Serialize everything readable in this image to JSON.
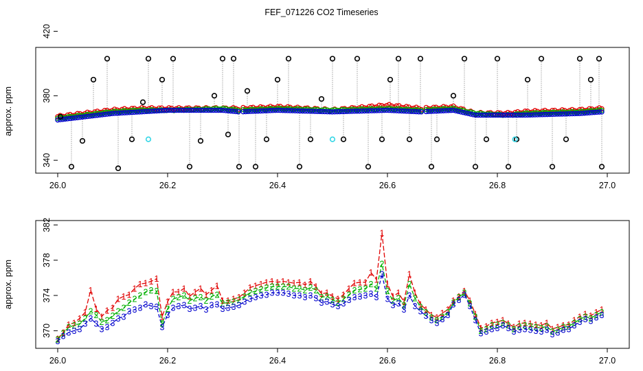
{
  "figure": {
    "title": "FEF_071226  CO2 Timeseries"
  },
  "colors": {
    "red": "#e00000",
    "green": "#00b000",
    "blue": "#0000cc",
    "black": "#000000",
    "cyan": "#33d6e6",
    "gray": "#888888"
  },
  "chart_data": [
    {
      "type": "scatter",
      "title": "",
      "xlabel": "",
      "ylabel": "approx. ppm",
      "xlim": [
        26.0,
        27.0
      ],
      "ylim": [
        332,
        410
      ],
      "xticks": [
        "26.0",
        "26.2",
        "26.4",
        "26.6",
        "26.8",
        "27.0"
      ],
      "yticks": [
        "340",
        "380",
        "420"
      ],
      "series": [
        {
          "name": "red",
          "trace": [
            [
              26.0,
              367
            ],
            [
              26.05,
              369
            ],
            [
              26.1,
              371
            ],
            [
              26.15,
              372
            ],
            [
              26.2,
              372
            ],
            [
              26.3,
              372
            ],
            [
              26.33,
              372
            ],
            [
              26.4,
              373
            ],
            [
              26.5,
              371
            ],
            [
              26.6,
              374
            ],
            [
              26.66,
              372
            ],
            [
              26.72,
              373
            ],
            [
              26.76,
              369
            ],
            [
              26.82,
              369
            ],
            [
              26.85,
              370
            ],
            [
              26.95,
              371
            ],
            [
              26.99,
              372
            ]
          ]
        },
        {
          "name": "green",
          "trace": [
            [
              26.0,
              366
            ],
            [
              26.05,
              368
            ],
            [
              26.1,
              370
            ],
            [
              26.15,
              371
            ],
            [
              26.2,
              371
            ],
            [
              26.3,
              372
            ],
            [
              26.33,
              371
            ],
            [
              26.4,
              372
            ],
            [
              26.5,
              371
            ],
            [
              26.6,
              372
            ],
            [
              26.66,
              371
            ],
            [
              26.72,
              372
            ],
            [
              26.76,
              369
            ],
            [
              26.82,
              368
            ],
            [
              26.85,
              369
            ],
            [
              26.95,
              370
            ],
            [
              26.99,
              371
            ]
          ]
        },
        {
          "name": "blue",
          "trace": [
            [
              26.0,
              365
            ],
            [
              26.05,
              367
            ],
            [
              26.1,
              369
            ],
            [
              26.15,
              370
            ],
            [
              26.2,
              371
            ],
            [
              26.3,
              371
            ],
            [
              26.33,
              370
            ],
            [
              26.4,
              371
            ],
            [
              26.5,
              370
            ],
            [
              26.6,
              371
            ],
            [
              26.66,
              370
            ],
            [
              26.72,
              371
            ],
            [
              26.76,
              368
            ],
            [
              26.82,
              368
            ],
            [
              26.85,
              368
            ],
            [
              26.95,
              369
            ],
            [
              26.99,
              370
            ]
          ]
        },
        {
          "name": "black spikes",
          "x": [
            26.005,
            26.025,
            26.045,
            26.065,
            26.09,
            26.11,
            26.135,
            26.155,
            26.165,
            26.19,
            26.21,
            26.24,
            26.26,
            26.285,
            26.3,
            26.31,
            26.32,
            26.33,
            26.345,
            26.36,
            26.38,
            26.4,
            26.42,
            26.44,
            26.46,
            26.48,
            26.5,
            26.52,
            26.545,
            26.565,
            26.59,
            26.605,
            26.62,
            26.64,
            26.66,
            26.68,
            26.69,
            26.72,
            26.74,
            26.76,
            26.78,
            26.8,
            26.82,
            26.835,
            26.855,
            26.88,
            26.9,
            26.925,
            26.95,
            26.97,
            26.985,
            26.99
          ],
          "y": [
            367,
            336,
            352,
            390,
            403,
            335,
            353,
            376,
            403,
            390,
            403,
            336,
            352,
            380,
            403,
            356,
            403,
            336,
            383,
            336,
            353,
            390,
            403,
            336,
            353,
            378,
            403,
            353,
            403,
            336,
            353,
            390,
            403,
            353,
            403,
            336,
            353,
            380,
            403,
            336,
            353,
            403,
            336,
            353,
            390,
            403,
            336,
            353,
            403,
            390,
            403,
            336
          ]
        },
        {
          "name": "cyan",
          "x": [
            26.165,
            26.5,
            26.832
          ],
          "y": [
            353,
            353,
            353
          ]
        }
      ]
    },
    {
      "type": "line",
      "title": "",
      "xlabel": "",
      "ylabel": "approx. ppm",
      "xlim": [
        26.0,
        27.0
      ],
      "ylim": [
        368,
        382.5
      ],
      "xticks": [
        "26.0",
        "26.2",
        "26.4",
        "26.6",
        "26.8",
        "27.0"
      ],
      "yticks": [
        "370",
        "374",
        "378",
        "382"
      ],
      "series": [
        {
          "name": "1",
          "marker": "1",
          "x": [
            26.0,
            26.01,
            26.02,
            26.03,
            26.04,
            26.05,
            26.06,
            26.07,
            26.08,
            26.09,
            26.1,
            26.11,
            26.12,
            26.13,
            26.14,
            26.15,
            26.16,
            26.17,
            26.18,
            26.19,
            26.2,
            26.21,
            26.22,
            26.23,
            26.24,
            26.25,
            26.26,
            26.27,
            26.28,
            26.29,
            26.3,
            26.31,
            26.32,
            26.33,
            26.34,
            26.35,
            26.36,
            26.37,
            26.38,
            26.39,
            26.4,
            26.41,
            26.42,
            26.43,
            26.44,
            26.45,
            26.46,
            26.47,
            26.48,
            26.49,
            26.5,
            26.51,
            26.52,
            26.53,
            26.54,
            26.55,
            26.56,
            26.57,
            26.58,
            26.59,
            26.6,
            26.61,
            26.62,
            26.63,
            26.64,
            26.65,
            26.66,
            26.67,
            26.68,
            26.69,
            26.7,
            26.71,
            26.72,
            26.73,
            26.74,
            26.75,
            26.76,
            26.77,
            26.78,
            26.79,
            26.8,
            26.81,
            26.82,
            26.83,
            26.84,
            26.85,
            26.86,
            26.87,
            26.88,
            26.89,
            26.9,
            26.91,
            26.92,
            26.93,
            26.94,
            26.95,
            26.96,
            26.97,
            26.98,
            26.99
          ],
          "y": [
            369.1,
            369.8,
            370.7,
            370.9,
            371.4,
            372.1,
            374.6,
            372.5,
            371.6,
            372.3,
            372.6,
            373.6,
            373.9,
            374.1,
            374.8,
            375.3,
            375.4,
            375.6,
            375.9,
            371.6,
            373.3,
            374.4,
            374.4,
            374.8,
            373.9,
            374.4,
            374.8,
            374.1,
            374.6,
            375.1,
            373.4,
            373.4,
            373.6,
            373.8,
            374.3,
            374.9,
            375.1,
            375.3,
            375.5,
            375.6,
            375.5,
            375.6,
            375.5,
            375.4,
            375.5,
            375.2,
            375.6,
            375.0,
            374.2,
            374.3,
            373.9,
            373.6,
            374.1,
            374.8,
            375.4,
            375.5,
            375.5,
            376.6,
            375.8,
            381.1,
            375.3,
            373.9,
            374.3,
            373.3,
            376.4,
            374.3,
            373.0,
            372.4,
            371.8,
            371.5,
            372.0,
            372.4,
            373.4,
            373.9,
            374.5,
            373.4,
            371.9,
            370.3,
            370.5,
            370.9,
            371.0,
            371.2,
            370.8,
            370.4,
            370.8,
            370.9,
            370.8,
            370.7,
            370.6,
            370.9,
            370.2,
            370.4,
            370.6,
            370.7,
            371.2,
            371.6,
            371.9,
            371.7,
            372.1,
            372.4
          ]
        },
        {
          "name": "2",
          "marker": "2",
          "x": [
            26.0,
            26.01,
            26.02,
            26.03,
            26.04,
            26.05,
            26.06,
            26.07,
            26.08,
            26.09,
            26.1,
            26.11,
            26.12,
            26.13,
            26.14,
            26.15,
            26.16,
            26.17,
            26.18,
            26.19,
            26.2,
            26.21,
            26.22,
            26.23,
            26.24,
            26.25,
            26.26,
            26.27,
            26.28,
            26.29,
            26.3,
            26.31,
            26.32,
            26.33,
            26.34,
            26.35,
            26.36,
            26.37,
            26.38,
            26.39,
            26.4,
            26.41,
            26.42,
            26.43,
            26.44,
            26.45,
            26.46,
            26.47,
            26.48,
            26.49,
            26.5,
            26.51,
            26.52,
            26.53,
            26.54,
            26.55,
            26.56,
            26.57,
            26.58,
            26.59,
            26.6,
            26.61,
            26.62,
            26.63,
            26.64,
            26.65,
            26.66,
            26.67,
            26.68,
            26.69,
            26.7,
            26.71,
            26.72,
            26.73,
            26.74,
            26.75,
            26.76,
            26.77,
            26.78,
            26.79,
            26.8,
            26.81,
            26.82,
            26.83,
            26.84,
            26.85,
            26.86,
            26.87,
            26.88,
            26.89,
            26.9,
            26.91,
            26.92,
            26.93,
            26.94,
            26.95,
            26.96,
            26.97,
            26.98,
            26.99
          ],
          "y": [
            369.0,
            369.7,
            370.4,
            370.6,
            370.8,
            371.4,
            372.2,
            371.8,
            371.0,
            371.2,
            371.7,
            372.2,
            372.6,
            373.2,
            373.6,
            374.0,
            374.4,
            374.6,
            374.5,
            370.8,
            372.5,
            373.6,
            373.8,
            374.0,
            373.4,
            373.7,
            373.8,
            373.4,
            373.9,
            374.1,
            373.1,
            373.2,
            373.3,
            373.5,
            373.9,
            374.3,
            374.5,
            374.7,
            374.9,
            375.0,
            375.0,
            375.0,
            375.0,
            374.8,
            374.8,
            374.6,
            374.9,
            374.6,
            373.8,
            373.9,
            373.5,
            373.2,
            373.6,
            374.1,
            374.6,
            374.7,
            374.8,
            375.3,
            374.8,
            377.6,
            374.5,
            373.4,
            373.7,
            372.9,
            375.3,
            373.7,
            372.7,
            372.1,
            371.5,
            371.2,
            371.6,
            372.1,
            373.2,
            373.8,
            374.3,
            373.1,
            371.6,
            370.0,
            370.2,
            370.6,
            370.7,
            370.9,
            370.6,
            370.2,
            370.5,
            370.6,
            370.5,
            370.4,
            370.3,
            370.5,
            369.9,
            370.1,
            370.4,
            370.5,
            370.9,
            371.3,
            371.6,
            371.4,
            371.8,
            372.1
          ]
        },
        {
          "name": "3",
          "marker": "3",
          "x": [
            26.0,
            26.01,
            26.02,
            26.03,
            26.04,
            26.05,
            26.06,
            26.07,
            26.08,
            26.09,
            26.1,
            26.11,
            26.12,
            26.13,
            26.14,
            26.15,
            26.16,
            26.17,
            26.18,
            26.19,
            26.2,
            26.21,
            26.22,
            26.23,
            26.24,
            26.25,
            26.26,
            26.27,
            26.28,
            26.29,
            26.3,
            26.31,
            26.32,
            26.33,
            26.34,
            26.35,
            26.36,
            26.37,
            26.38,
            26.39,
            26.4,
            26.41,
            26.42,
            26.43,
            26.44,
            26.45,
            26.46,
            26.47,
            26.48,
            26.49,
            26.5,
            26.51,
            26.52,
            26.53,
            26.54,
            26.55,
            26.56,
            26.57,
            26.58,
            26.59,
            26.6,
            26.61,
            26.62,
            26.63,
            26.64,
            26.65,
            26.66,
            26.67,
            26.68,
            26.69,
            26.7,
            26.71,
            26.72,
            26.73,
            26.74,
            26.75,
            26.76,
            26.77,
            26.78,
            26.79,
            26.8,
            26.81,
            26.82,
            26.83,
            26.84,
            26.85,
            26.86,
            26.87,
            26.88,
            26.89,
            26.9,
            26.91,
            26.92,
            26.93,
            26.94,
            26.95,
            26.96,
            26.97,
            26.98,
            26.99
          ],
          "y": [
            368.8,
            369.4,
            369.8,
            370.0,
            370.2,
            370.8,
            371.4,
            370.8,
            370.2,
            370.4,
            370.9,
            371.4,
            371.6,
            372.2,
            372.4,
            372.6,
            373.0,
            372.8,
            372.7,
            370.4,
            371.8,
            372.6,
            372.8,
            372.9,
            372.5,
            372.6,
            372.8,
            372.4,
            372.9,
            373.0,
            372.5,
            372.6,
            372.7,
            372.9,
            373.3,
            373.6,
            373.8,
            374.0,
            374.1,
            374.3,
            374.3,
            374.3,
            374.2,
            374.0,
            374.0,
            373.8,
            374.0,
            373.7,
            373.2,
            373.3,
            373.0,
            372.8,
            373.1,
            373.5,
            373.8,
            373.9,
            374.0,
            374.2,
            373.8,
            376.4,
            373.6,
            372.9,
            373.1,
            372.4,
            374.0,
            372.8,
            372.2,
            371.7,
            371.2,
            370.9,
            371.3,
            371.8,
            373.0,
            373.5,
            374.1,
            372.8,
            371.2,
            369.7,
            369.9,
            370.2,
            370.3,
            370.6,
            370.3,
            369.9,
            370.1,
            370.2,
            370.1,
            370.0,
            369.9,
            370.1,
            369.6,
            369.8,
            370.1,
            370.2,
            370.6,
            371.0,
            371.3,
            371.1,
            371.5,
            371.8
          ]
        }
      ]
    }
  ]
}
